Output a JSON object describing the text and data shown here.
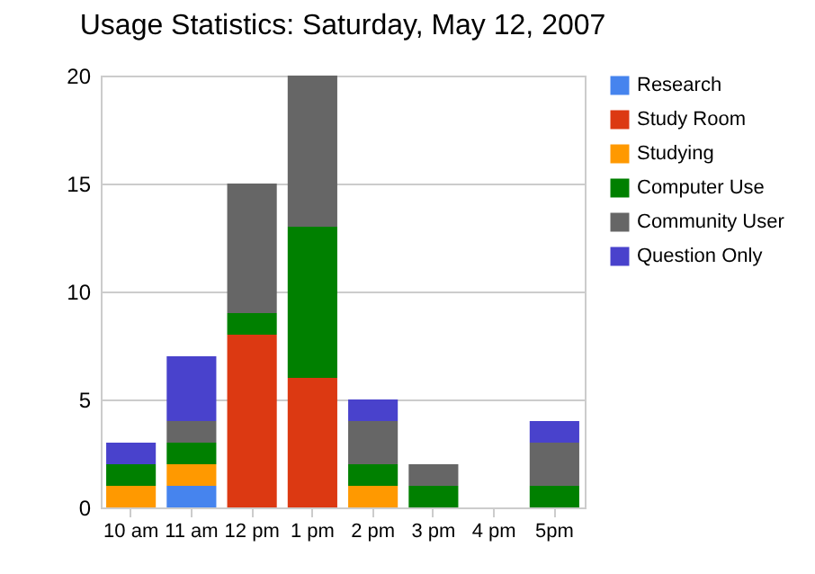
{
  "chart_data": {
    "type": "bar",
    "title": "Usage Statistics: Saturday, May 12, 2007",
    "stacked": true,
    "categories": [
      "10 am",
      "11 am",
      "12 pm",
      "1 pm",
      "2 pm",
      "3 pm",
      "4 pm",
      "5pm"
    ],
    "series": [
      {
        "name": "Research",
        "color": "#4684ee",
        "values": [
          0,
          1,
          0,
          0,
          0,
          0,
          0,
          0
        ]
      },
      {
        "name": "Study Room",
        "color": "#dc3912",
        "values": [
          0,
          0,
          8,
          6,
          0,
          0,
          0,
          0
        ]
      },
      {
        "name": "Studying",
        "color": "#ff9900",
        "values": [
          1,
          1,
          0,
          0,
          1,
          0,
          0,
          0
        ]
      },
      {
        "name": "Computer Use",
        "color": "#008000",
        "values": [
          1,
          1,
          1,
          7,
          1,
          1,
          0,
          1
        ]
      },
      {
        "name": "Community User",
        "color": "#666666",
        "values": [
          0,
          1,
          6,
          7,
          2,
          1,
          0,
          2
        ]
      },
      {
        "name": "Question Only",
        "color": "#4942cc",
        "values": [
          1,
          3,
          0,
          0,
          1,
          0,
          0,
          1
        ]
      }
    ],
    "ylim": [
      0,
      20
    ],
    "yticks": [
      0,
      5,
      10,
      15,
      20
    ],
    "grid": "y",
    "legend": "right"
  }
}
